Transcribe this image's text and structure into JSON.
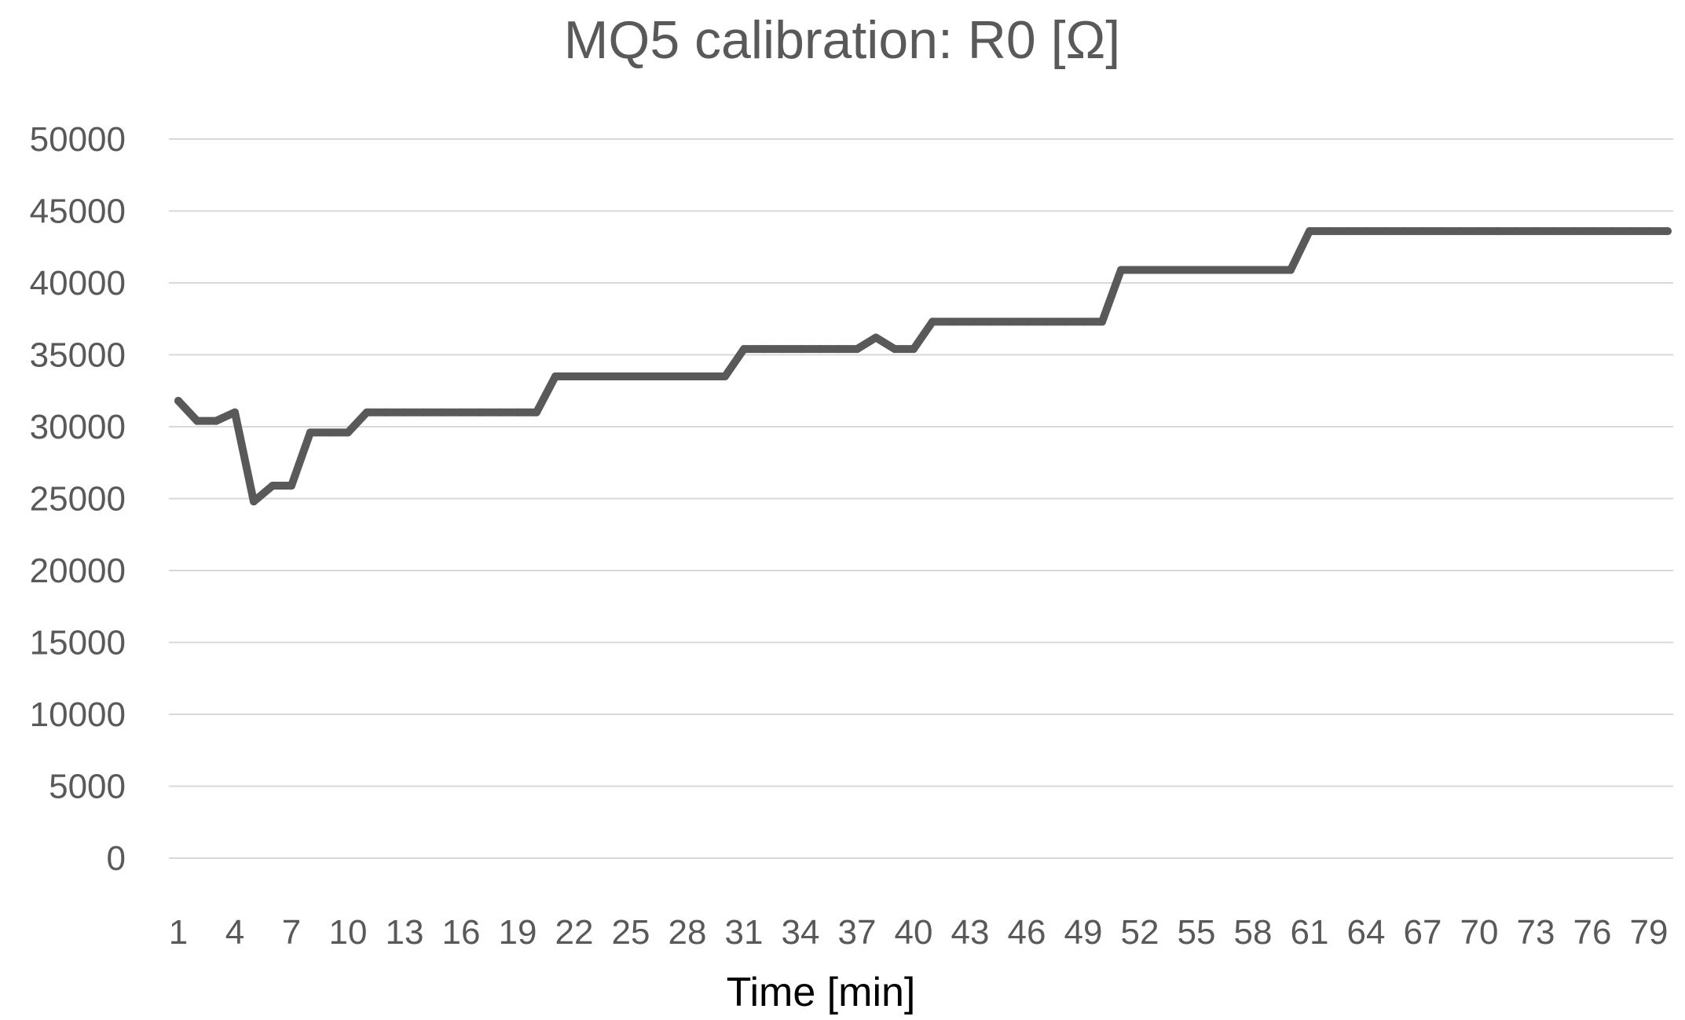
{
  "colors": {
    "series": "#595959",
    "grid": "#d9d9d9",
    "text": "#595959",
    "axis_title": "#000000",
    "background": "#ffffff"
  },
  "chart_data": {
    "type": "line",
    "title": "MQ5 calibration: R0 [Ω]",
    "xlabel": "Time [min]",
    "ylabel": "",
    "ylim": [
      0,
      50000
    ],
    "yticks": [
      0,
      5000,
      10000,
      15000,
      20000,
      25000,
      30000,
      35000,
      40000,
      45000,
      50000
    ],
    "xlim": [
      1,
      80
    ],
    "xticks": [
      1,
      4,
      7,
      10,
      13,
      16,
      19,
      22,
      25,
      28,
      31,
      34,
      37,
      40,
      43,
      46,
      49,
      52,
      55,
      58,
      61,
      64,
      67,
      70,
      73,
      76,
      79
    ],
    "grid": true,
    "legend": "none",
    "series": [
      {
        "name": "R0",
        "x": [
          1,
          2,
          3,
          4,
          5,
          6,
          7,
          8,
          9,
          10,
          11,
          12,
          13,
          14,
          15,
          16,
          17,
          18,
          19,
          20,
          21,
          22,
          23,
          24,
          25,
          26,
          27,
          28,
          29,
          30,
          31,
          32,
          33,
          34,
          35,
          36,
          37,
          38,
          39,
          40,
          41,
          42,
          43,
          44,
          45,
          46,
          47,
          48,
          49,
          50,
          51,
          52,
          53,
          54,
          55,
          56,
          57,
          58,
          59,
          60,
          61,
          62,
          63,
          64,
          65,
          66,
          67,
          68,
          69,
          70,
          71,
          72,
          73,
          74,
          75,
          76,
          77,
          78,
          79,
          80
        ],
        "values": [
          31800,
          30400,
          30400,
          31000,
          24800,
          25900,
          25900,
          29600,
          29600,
          29600,
          31000,
          31000,
          31000,
          31000,
          31000,
          31000,
          31000,
          31000,
          31000,
          31000,
          33500,
          33500,
          33500,
          33500,
          33500,
          33500,
          33500,
          33500,
          33500,
          33500,
          35400,
          35400,
          35400,
          35400,
          35400,
          35400,
          35400,
          36200,
          35400,
          35400,
          37300,
          37300,
          37300,
          37300,
          37300,
          37300,
          37300,
          37300,
          37300,
          37300,
          40900,
          40900,
          40900,
          40900,
          40900,
          40900,
          40900,
          40900,
          40900,
          40900,
          43600,
          43600,
          43600,
          43600,
          43600,
          43600,
          43600,
          43600,
          43600,
          43600,
          43600,
          43600,
          43600,
          43600,
          43600,
          43600,
          43600,
          43600,
          43600,
          43600
        ]
      }
    ]
  }
}
